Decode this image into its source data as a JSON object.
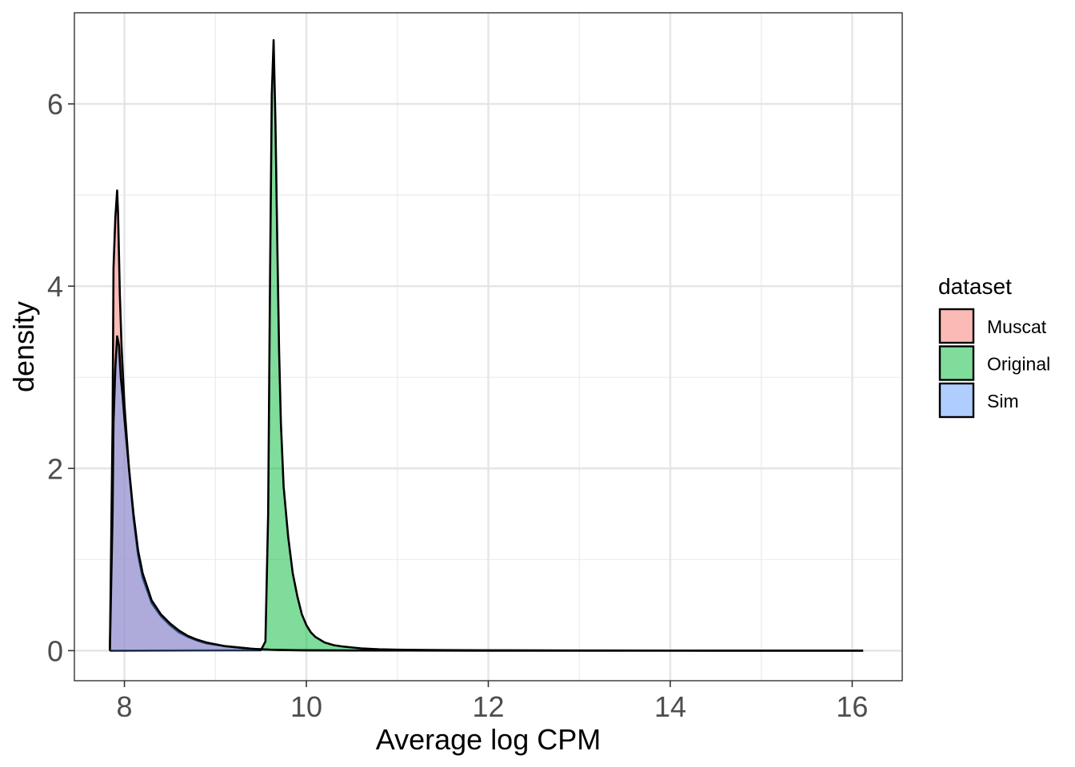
{
  "chart_data": {
    "type": "area",
    "subtype": "density",
    "title": "",
    "xlabel": "Average log CPM",
    "ylabel": "density",
    "xlim": [
      7.45,
      16.55
    ],
    "ylim": [
      -0.33,
      7.0
    ],
    "x_ticks": [
      8,
      10,
      12,
      14,
      16
    ],
    "x_tick_labels": [
      "8",
      "10",
      "12",
      "14",
      "16"
    ],
    "y_ticks": [
      0,
      2,
      4,
      6
    ],
    "y_tick_labels": [
      "0",
      "2",
      "4",
      "6"
    ],
    "x_minor_ticks": [
      9,
      11,
      13,
      15
    ],
    "y_minor_ticks": [
      1,
      3,
      5
    ],
    "grid": true,
    "legend": {
      "title": "dataset",
      "position": "right"
    },
    "series": [
      {
        "name": "Muscat",
        "color": "#F8766D",
        "x": [
          7.84,
          7.85,
          7.87,
          7.88,
          7.9,
          7.92,
          7.93,
          7.95,
          7.97,
          8.0,
          8.05,
          8.1,
          8.15,
          8.2,
          8.3,
          8.4,
          8.5,
          8.6,
          8.7,
          8.8,
          8.9,
          9.0,
          9.1,
          9.2,
          9.3,
          9.4,
          9.5,
          9.6,
          9.7,
          9.8,
          10.0,
          10.5,
          11.0,
          12.0,
          13.0,
          14.0,
          15.0,
          16.12
        ],
        "y": [
          0.0,
          0.8,
          2.5,
          4.2,
          4.75,
          5.05,
          4.8,
          3.9,
          3.3,
          2.7,
          2.0,
          1.45,
          1.05,
          0.8,
          0.52,
          0.38,
          0.28,
          0.2,
          0.15,
          0.11,
          0.08,
          0.065,
          0.05,
          0.04,
          0.03,
          0.02,
          0.015,
          0.01,
          0.008,
          0.006,
          0.004,
          0.002,
          0.001,
          0.0005,
          0.0003,
          0.0002,
          0.0001,
          0.0
        ]
      },
      {
        "name": "Original",
        "color": "#00BA38",
        "x": [
          7.84,
          9.5,
          9.55,
          9.58,
          9.6,
          9.62,
          9.64,
          9.66,
          9.68,
          9.7,
          9.72,
          9.75,
          9.8,
          9.85,
          9.9,
          9.95,
          10.0,
          10.05,
          10.1,
          10.2,
          10.3,
          10.4,
          10.5,
          10.6,
          10.8,
          11.0,
          11.5,
          12.0,
          13.0,
          14.0,
          15.0,
          16.12
        ],
        "y": [
          0.0,
          0.005,
          0.1,
          1.5,
          4.0,
          6.1,
          6.7,
          5.8,
          4.5,
          3.3,
          2.5,
          1.8,
          1.25,
          0.85,
          0.6,
          0.4,
          0.28,
          0.2,
          0.15,
          0.09,
          0.06,
          0.045,
          0.035,
          0.025,
          0.015,
          0.01,
          0.006,
          0.004,
          0.002,
          0.001,
          0.0005,
          0.0
        ]
      },
      {
        "name": "Sim",
        "color": "#619CFF",
        "x": [
          7.84,
          7.85,
          7.87,
          7.88,
          7.9,
          7.92,
          7.94,
          7.96,
          7.98,
          8.0,
          8.05,
          8.1,
          8.15,
          8.2,
          8.3,
          8.4,
          8.5,
          8.6,
          8.7,
          8.8,
          8.9,
          9.0,
          9.1,
          9.2,
          9.3,
          9.4,
          9.5,
          9.6,
          9.7,
          9.8,
          10.0,
          10.5,
          11.0,
          12.0,
          13.0,
          14.0,
          15.0,
          16.12
        ],
        "y": [
          0.0,
          0.5,
          1.5,
          2.5,
          3.1,
          3.45,
          3.35,
          3.0,
          2.8,
          2.55,
          2.0,
          1.5,
          1.1,
          0.85,
          0.55,
          0.4,
          0.3,
          0.22,
          0.16,
          0.12,
          0.09,
          0.07,
          0.05,
          0.04,
          0.03,
          0.02,
          0.015,
          0.01,
          0.008,
          0.006,
          0.004,
          0.002,
          0.001,
          0.0005,
          0.0003,
          0.0002,
          0.0001,
          0.0
        ]
      }
    ]
  }
}
